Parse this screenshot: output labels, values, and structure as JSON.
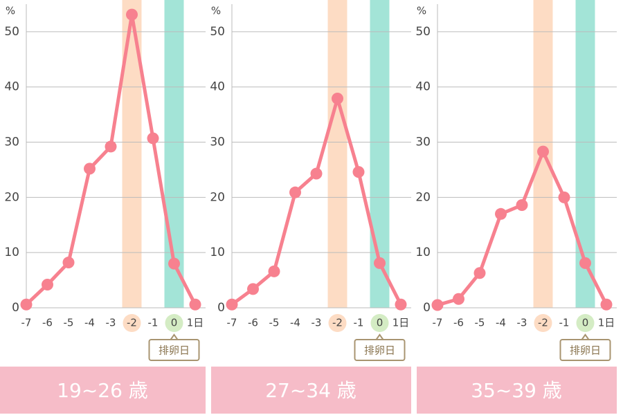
{
  "chart_data": [
    {
      "type": "line",
      "title": "19~26 歳",
      "y_unit": "%",
      "categories": [
        "-7",
        "-6",
        "-5",
        "-4",
        "-3",
        "-2",
        "-1",
        "0",
        "1日"
      ],
      "values": [
        0.6,
        4.2,
        8.2,
        25.2,
        29.2,
        53.1,
        30.7,
        8.0,
        0.6
      ],
      "color": "#f7818f",
      "ylim": [
        0,
        55
      ],
      "yticks": [
        0,
        10,
        20,
        30,
        40,
        50
      ],
      "grid": true,
      "bands": [
        {
          "index": 5,
          "color": "#fddcc4",
          "label_bg": "#fddcc4"
        },
        {
          "index": 7,
          "color": "#a3e4d7",
          "label_bg": "#d4ecc4"
        }
      ],
      "annotation": {
        "text": "排卵日",
        "index": 7
      }
    },
    {
      "type": "line",
      "title": "27~34 歳",
      "y_unit": "%",
      "categories": [
        "-7",
        "-6",
        "-5",
        "-4",
        "-3",
        "-2",
        "-1",
        "0",
        "1日"
      ],
      "values": [
        0.6,
        3.4,
        6.6,
        20.9,
        24.3,
        37.9,
        24.6,
        8.1,
        0.6
      ],
      "color": "#f7818f",
      "ylim": [
        0,
        55
      ],
      "yticks": [
        0,
        10,
        20,
        30,
        40,
        50
      ],
      "grid": true,
      "bands": [
        {
          "index": 5,
          "color": "#fddcc4",
          "label_bg": "#fddcc4"
        },
        {
          "index": 7,
          "color": "#a3e4d7",
          "label_bg": "#d4ecc4"
        }
      ],
      "annotation": {
        "text": "排卵日",
        "index": 7
      }
    },
    {
      "type": "line",
      "title": "35~39 歳",
      "y_unit": "%",
      "categories": [
        "-7",
        "-6",
        "-5",
        "-4",
        "-3",
        "-2",
        "-1",
        "0",
        "1日"
      ],
      "values": [
        0.5,
        1.6,
        6.3,
        17.0,
        18.6,
        28.3,
        20.0,
        8.1,
        0.6
      ],
      "color": "#f7818f",
      "ylim": [
        0,
        55
      ],
      "yticks": [
        0,
        10,
        20,
        30,
        40,
        50
      ],
      "grid": true,
      "bands": [
        {
          "index": 5,
          "color": "#fddcc4",
          "label_bg": "#fddcc4"
        },
        {
          "index": 7,
          "color": "#a3e4d7",
          "label_bg": "#d4ecc4"
        }
      ],
      "annotation": {
        "text": "排卵日",
        "index": 7
      }
    }
  ]
}
